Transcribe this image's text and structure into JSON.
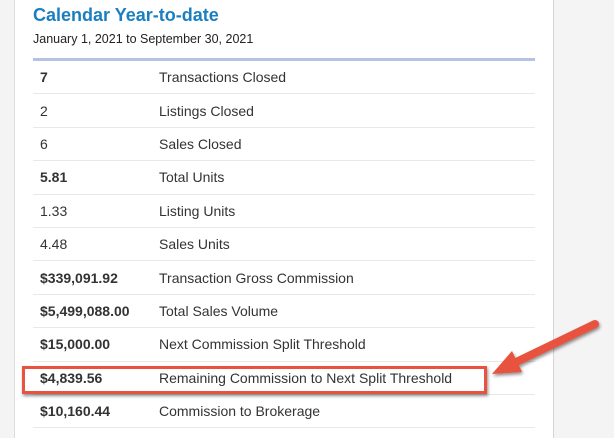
{
  "title": "Calendar Year-to-date",
  "date_range": "January 1, 2021 to September 30, 2021",
  "highlight_color": "#e8523f",
  "rows": [
    {
      "value": "7",
      "label": "Transactions Closed",
      "bold": true
    },
    {
      "value": "2",
      "label": "Listings Closed",
      "bold": false
    },
    {
      "value": "6",
      "label": "Sales Closed",
      "bold": false
    },
    {
      "value": "5.81",
      "label": "Total Units",
      "bold": true
    },
    {
      "value": "1.33",
      "label": "Listing Units",
      "bold": false
    },
    {
      "value": "4.48",
      "label": "Sales Units",
      "bold": false
    },
    {
      "value": "$339,091.92",
      "label": "Transaction Gross Commission",
      "bold": true
    },
    {
      "value": "$5,499,088.00",
      "label": "Total Sales Volume",
      "bold": true
    },
    {
      "value": "$15,000.00",
      "label": "Next Commission Split Threshold",
      "bold": true
    },
    {
      "value": "$4,839.56",
      "label": "Remaining Commission to Next Split Threshold",
      "bold": true,
      "highlighted": true
    },
    {
      "value": "$10,160.44",
      "label": "Commission to Brokerage",
      "bold": true
    }
  ]
}
